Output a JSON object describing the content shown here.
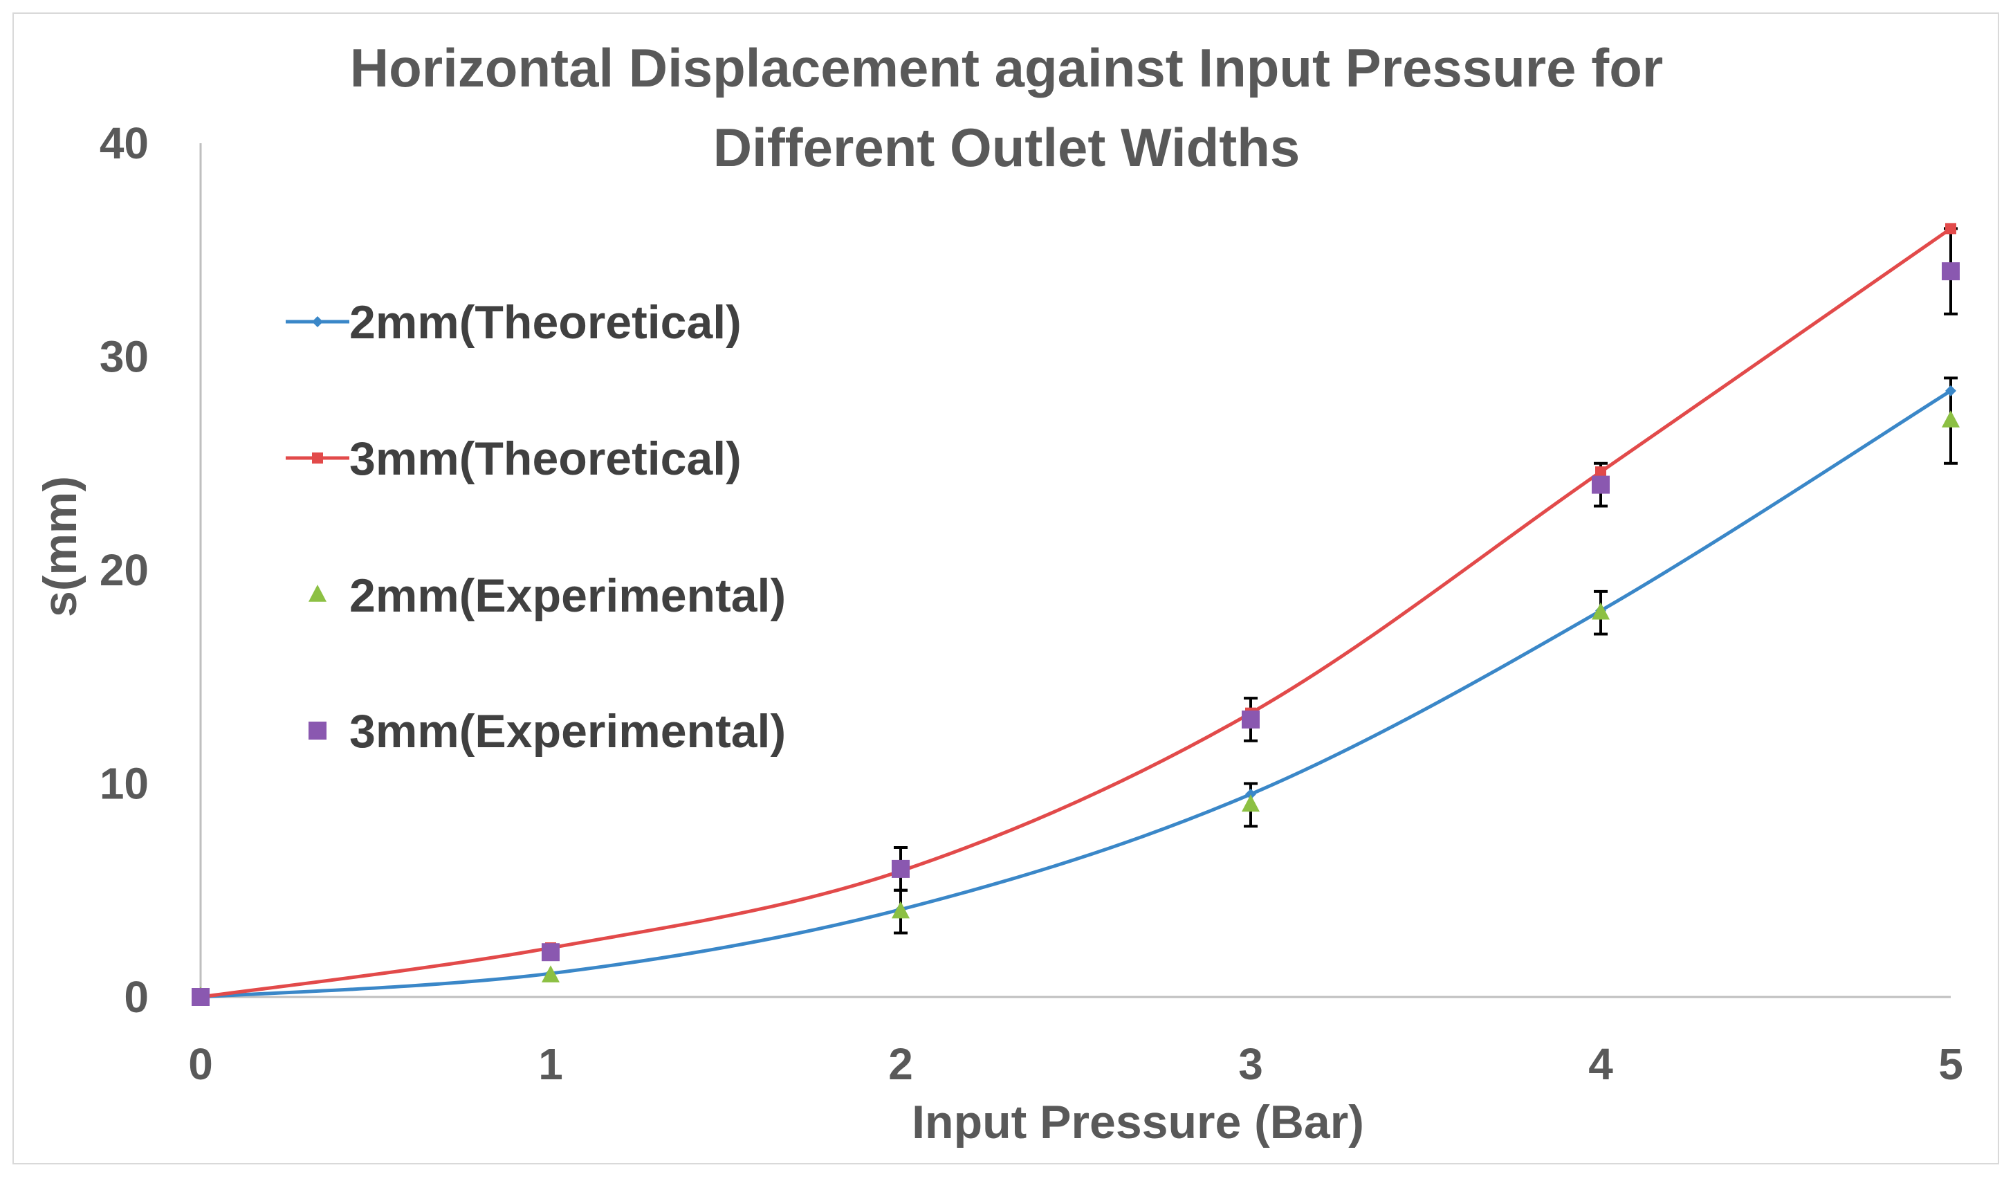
{
  "colors": {
    "theory_2mm": "#3a87c8",
    "theory_3mm": "#e24a4a",
    "exp_2mm": "#8cc043",
    "exp_3mm": "#8a58b0",
    "error_bar": "#000000",
    "axis": "#bfbfbf",
    "text": "#595959",
    "legend_text": "#404040"
  },
  "chart_data": {
    "type": "line",
    "title": "Horizontal Displacement against Input Pressure for Different Outlet Widths",
    "title_lines": [
      "Horizontal Displacement against Input Pressure for",
      "Different Outlet Widths"
    ],
    "xlabel": "Input Pressure (Bar)",
    "ylabel": "s(mm)",
    "xlim": [
      0,
      5
    ],
    "ylim": [
      0,
      40
    ],
    "x_ticks": [
      "0",
      "1",
      "2",
      "3",
      "4",
      "5"
    ],
    "y_ticks": [
      "0",
      "10",
      "20",
      "30",
      "40"
    ],
    "grid": false,
    "legend_position": "left",
    "series": [
      {
        "name": "2mm(Theoretical)",
        "kind": "line",
        "marker": "diamond",
        "color_key": "theory_2mm",
        "x": [
          0,
          1,
          2,
          3,
          4,
          5
        ],
        "y": [
          0,
          1.1,
          4.1,
          9.5,
          18.1,
          28.4
        ]
      },
      {
        "name": "3mm(Theoretical)",
        "kind": "line",
        "marker": "square",
        "color_key": "theory_3mm",
        "x": [
          0,
          1,
          2,
          3,
          4,
          5
        ],
        "y": [
          0,
          2.3,
          5.9,
          13.3,
          24.6,
          36.0
        ]
      },
      {
        "name": "2mm(Experimental)",
        "kind": "scatter",
        "marker": "triangle",
        "color_key": "exp_2mm",
        "x": [
          0,
          1,
          2,
          3,
          4,
          5
        ],
        "y": [
          0,
          1.0,
          4.0,
          9.0,
          18.0,
          27.0
        ],
        "error": [
          0,
          0,
          1.0,
          1.0,
          1.0,
          2.0
        ]
      },
      {
        "name": "3mm(Experimental)",
        "kind": "scatter",
        "marker": "square",
        "color_key": "exp_3mm",
        "x": [
          0,
          1,
          2,
          3,
          4,
          5
        ],
        "y": [
          0,
          2.1,
          6.0,
          13.0,
          24.0,
          34.0
        ],
        "error": [
          0,
          0,
          1.0,
          1.0,
          1.0,
          2.0
        ]
      }
    ]
  }
}
